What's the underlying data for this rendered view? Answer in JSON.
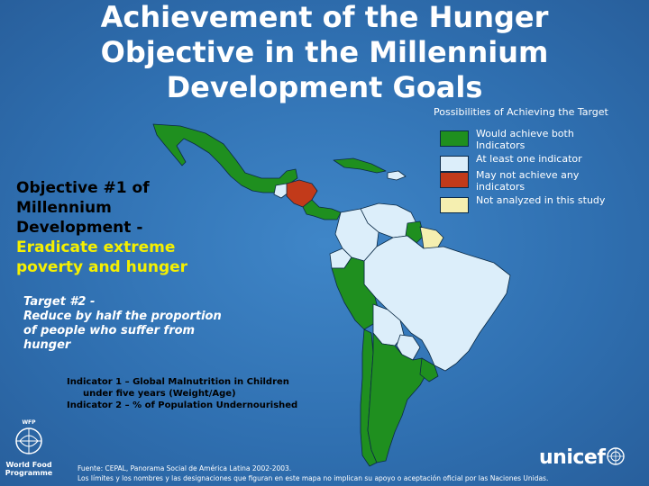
{
  "title": {
    "lines": [
      "Achievement of the Hunger",
      "Objective in the Millennium",
      "Development Goals"
    ]
  },
  "legend": {
    "title": "Possibilities of Achieving the Target",
    "items": [
      {
        "label": "Would achieve both Indicators",
        "color": "#1f8f1f"
      },
      {
        "label": "At least one indicator",
        "color": "#dceefa"
      },
      {
        "label": "May not achieve any indicators",
        "color": "#c23a1a"
      },
      {
        "label": "Not analyzed in this study",
        "color": "#f5efb0"
      }
    ]
  },
  "objective": {
    "lines": [
      "Objective #1 of",
      "Millennium",
      "Development -"
    ],
    "highlight_lines": [
      "Eradicate extreme",
      "poverty and hunger"
    ]
  },
  "target": {
    "lines": [
      "Target #2 -",
      "Reduce by half the proportion",
      "of people who suffer from",
      "hunger"
    ]
  },
  "indicators": {
    "line1": "Indicator 1 – Global Malnutrition in Children",
    "line2": "under five years (Weight/Age)",
    "line3": "Indicator 2 – % of Population Undernourished"
  },
  "source": {
    "line1": "Fuente: CEPAL, Panorama Social de América Latina 2002-2003.",
    "line2": "Los límites y los nombres y las designaciones que figuran en este mapa no implican su apoyo o aceptación oficial por las Naciones Unidas."
  },
  "logos": {
    "wfp": {
      "line1": "World Food",
      "line2": "Programme",
      "mark": "WFP"
    },
    "unicef": {
      "word": "unicef"
    }
  },
  "colors": {
    "achieve_both": "#1f8f1f",
    "at_least_one": "#dceefa",
    "may_not": "#c23a1a",
    "not_analyzed": "#f5efb0",
    "background": "#2f6fb0"
  }
}
